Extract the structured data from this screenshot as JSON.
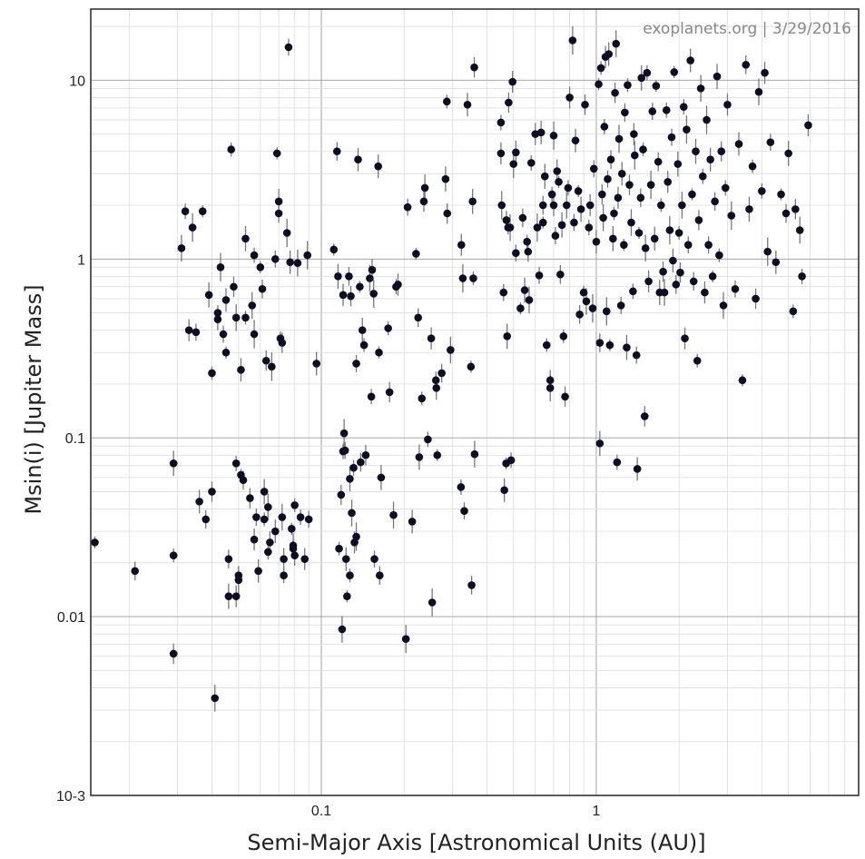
{
  "chart_data": {
    "type": "scatter",
    "title": "",
    "credit": "exoplanets.org | 3/29/2016",
    "xlabel": "Semi-Major Axis [Astronomical Units (AU)]",
    "ylabel": "Msin(i) [Jupiter Mass]",
    "xscale": "log",
    "yscale": "log",
    "xlim": [
      0.0145,
      9.0
    ],
    "ylim": [
      0.001,
      25
    ],
    "x_ticks": [
      {
        "value": 0.1,
        "label": "0.1"
      },
      {
        "value": 1,
        "label": "1"
      }
    ],
    "y_ticks": [
      {
        "value": 10,
        "label": "10"
      },
      {
        "value": 1,
        "label": "1"
      },
      {
        "value": 0.1,
        "label": "0.1"
      },
      {
        "value": 0.01,
        "label": "0.01"
      },
      {
        "value": 0.001,
        "label": "10-3"
      }
    ],
    "grid": true,
    "marker_color": "#0d0d26",
    "error_bar_color": "#777777",
    "points": [
      [
        0.015,
        0.026
      ],
      [
        0.021,
        0.018
      ],
      [
        0.029,
        0.072
      ],
      [
        0.029,
        0.022
      ],
      [
        0.029,
        0.0062
      ],
      [
        0.031,
        1.15
      ],
      [
        0.032,
        1.85
      ],
      [
        0.033,
        0.4
      ],
      [
        0.034,
        1.5
      ],
      [
        0.035,
        0.39
      ],
      [
        0.036,
        0.044
      ],
      [
        0.037,
        1.85
      ],
      [
        0.038,
        0.035
      ],
      [
        0.039,
        0.63
      ],
      [
        0.04,
        0.23
      ],
      [
        0.04,
        0.05
      ],
      [
        0.041,
        0.0035
      ],
      [
        0.042,
        0.5
      ],
      [
        0.042,
        0.46
      ],
      [
        0.043,
        0.9
      ],
      [
        0.044,
        0.38
      ],
      [
        0.045,
        0.59
      ],
      [
        0.045,
        0.3
      ],
      [
        0.046,
        0.021
      ],
      [
        0.046,
        0.013
      ],
      [
        0.047,
        4.1
      ],
      [
        0.048,
        0.7
      ],
      [
        0.049,
        0.47
      ],
      [
        0.049,
        0.072
      ],
      [
        0.049,
        0.013
      ],
      [
        0.05,
        0.016
      ],
      [
        0.05,
        0.017
      ],
      [
        0.051,
        0.24
      ],
      [
        0.051,
        0.062
      ],
      [
        0.052,
        0.058
      ],
      [
        0.053,
        1.3
      ],
      [
        0.053,
        0.47
      ],
      [
        0.055,
        0.046
      ],
      [
        0.056,
        0.55
      ],
      [
        0.057,
        1.05
      ],
      [
        0.057,
        0.027
      ],
      [
        0.057,
        0.38
      ],
      [
        0.058,
        0.036
      ],
      [
        0.059,
        0.018
      ],
      [
        0.06,
        0.9
      ],
      [
        0.061,
        0.68
      ],
      [
        0.062,
        0.05
      ],
      [
        0.062,
        0.035
      ],
      [
        0.063,
        0.27
      ],
      [
        0.064,
        0.041
      ],
      [
        0.064,
        0.023
      ],
      [
        0.065,
        0.026
      ],
      [
        0.066,
        0.25
      ],
      [
        0.068,
        1.0
      ],
      [
        0.068,
        0.03
      ],
      [
        0.069,
        3.9
      ],
      [
        0.07,
        1.8
      ],
      [
        0.07,
        2.1
      ],
      [
        0.071,
        0.36
      ],
      [
        0.072,
        0.34
      ],
      [
        0.072,
        0.036
      ],
      [
        0.073,
        0.017
      ],
      [
        0.073,
        0.021
      ],
      [
        0.075,
        1.4
      ],
      [
        0.076,
        15.3
      ],
      [
        0.077,
        0.96
      ],
      [
        0.078,
        0.031
      ],
      [
        0.079,
        0.024
      ],
      [
        0.079,
        0.025
      ],
      [
        0.08,
        0.042
      ],
      [
        0.08,
        0.022
      ],
      [
        0.082,
        0.95
      ],
      [
        0.084,
        0.036
      ],
      [
        0.087,
        0.021
      ],
      [
        0.089,
        1.05
      ],
      [
        0.09,
        0.035
      ],
      [
        0.096,
        0.26
      ],
      [
        0.111,
        1.13
      ],
      [
        0.114,
        4.0
      ],
      [
        0.115,
        0.8
      ],
      [
        0.116,
        0.024
      ],
      [
        0.118,
        0.048
      ],
      [
        0.119,
        0.0085
      ],
      [
        0.12,
        0.084
      ],
      [
        0.12,
        0.63
      ],
      [
        0.121,
        0.106
      ],
      [
        0.122,
        0.085
      ],
      [
        0.123,
        0.021
      ],
      [
        0.124,
        0.013
      ],
      [
        0.126,
        0.8
      ],
      [
        0.127,
        0.059
      ],
      [
        0.127,
        0.017
      ],
      [
        0.128,
        0.62
      ],
      [
        0.129,
        0.038
      ],
      [
        0.131,
        0.068
      ],
      [
        0.132,
        0.026
      ],
      [
        0.134,
        0.028
      ],
      [
        0.134,
        0.26
      ],
      [
        0.136,
        3.6
      ],
      [
        0.138,
        0.7
      ],
      [
        0.139,
        0.073
      ],
      [
        0.141,
        0.4
      ],
      [
        0.143,
        0.33
      ],
      [
        0.145,
        0.08
      ],
      [
        0.15,
        0.78
      ],
      [
        0.152,
        0.17
      ],
      [
        0.153,
        0.87
      ],
      [
        0.155,
        0.64
      ],
      [
        0.156,
        0.021
      ],
      [
        0.161,
        3.3
      ],
      [
        0.162,
        0.3
      ],
      [
        0.163,
        0.017
      ],
      [
        0.165,
        0.06
      ],
      [
        0.175,
        0.41
      ],
      [
        0.177,
        0.18
      ],
      [
        0.183,
        0.037
      ],
      [
        0.187,
        0.7
      ],
      [
        0.19,
        0.72
      ],
      [
        0.203,
        0.0075
      ],
      [
        0.206,
        1.95
      ],
      [
        0.214,
        0.034
      ],
      [
        0.221,
        1.07
      ],
      [
        0.225,
        0.47
      ],
      [
        0.227,
        0.078
      ],
      [
        0.232,
        0.166
      ],
      [
        0.236,
        2.1
      ],
      [
        0.238,
        2.5
      ],
      [
        0.244,
        0.098
      ],
      [
        0.251,
        0.36
      ],
      [
        0.253,
        0.012
      ],
      [
        0.261,
        0.21
      ],
      [
        0.262,
        0.19
      ],
      [
        0.264,
        0.08
      ],
      [
        0.274,
        0.23
      ],
      [
        0.283,
        2.8
      ],
      [
        0.286,
        7.6
      ],
      [
        0.287,
        1.8
      ],
      [
        0.295,
        0.31
      ],
      [
        0.322,
        0.053
      ],
      [
        0.323,
        1.2
      ],
      [
        0.327,
        0.78
      ],
      [
        0.331,
        0.039
      ],
      [
        0.34,
        7.3
      ],
      [
        0.35,
        0.25
      ],
      [
        0.352,
        0.015
      ],
      [
        0.355,
        2.1
      ],
      [
        0.357,
        0.78
      ],
      [
        0.36,
        11.8
      ],
      [
        0.361,
        0.081
      ],
      [
        0.45,
        5.8
      ],
      [
        0.45,
        3.9
      ],
      [
        0.453,
        2.0
      ],
      [
        0.46,
        0.65
      ],
      [
        0.463,
        0.051
      ],
      [
        0.47,
        0.072
      ],
      [
        0.471,
        1.65
      ],
      [
        0.474,
        0.37
      ],
      [
        0.478,
        1.5
      ],
      [
        0.48,
        7.5
      ],
      [
        0.486,
        1.5
      ],
      [
        0.49,
        0.075
      ],
      [
        0.496,
        9.8
      ],
      [
        0.5,
        3.4
      ],
      [
        0.51,
        1.08
      ],
      [
        0.51,
        3.95
      ],
      [
        0.53,
        0.53
      ],
      [
        0.54,
        1.7
      ],
      [
        0.549,
        0.67
      ],
      [
        0.56,
        1.25
      ],
      [
        0.565,
        1.1
      ],
      [
        0.57,
        0.59
      ],
      [
        0.58,
        3.45
      ],
      [
        0.6,
        5.0
      ],
      [
        0.61,
        1.5
      ],
      [
        0.62,
        0.81
      ],
      [
        0.63,
        5.1
      ],
      [
        0.64,
        1.6
      ],
      [
        0.64,
        2.0
      ],
      [
        0.65,
        2.9
      ],
      [
        0.66,
        0.33
      ],
      [
        0.68,
        0.21
      ],
      [
        0.68,
        0.19
      ],
      [
        0.69,
        2.3
      ],
      [
        0.7,
        2.0
      ],
      [
        0.7,
        4.9
      ],
      [
        0.71,
        1.35
      ],
      [
        0.72,
        3.1
      ],
      [
        0.73,
        2.7
      ],
      [
        0.74,
        0.82
      ],
      [
        0.75,
        1.55
      ],
      [
        0.76,
        0.37
      ],
      [
        0.77,
        0.17
      ],
      [
        0.78,
        2.0
      ],
      [
        0.79,
        2.5
      ],
      [
        0.8,
        8.0
      ],
      [
        0.82,
        16.7
      ],
      [
        0.83,
        1.6
      ],
      [
        0.84,
        4.6
      ],
      [
        0.86,
        2.4
      ],
      [
        0.87,
        0.49
      ],
      [
        0.88,
        1.9
      ],
      [
        0.9,
        0.65
      ],
      [
        0.91,
        7.3
      ],
      [
        0.92,
        0.58
      ],
      [
        0.94,
        1.5
      ],
      [
        0.95,
        2.0
      ],
      [
        0.97,
        0.53
      ],
      [
        0.98,
        3.2
      ],
      [
        1.0,
        1.25
      ],
      [
        1.02,
        9.5
      ],
      [
        1.03,
        0.34
      ],
      [
        1.03,
        0.093
      ],
      [
        1.04,
        11.7
      ],
      [
        1.05,
        2.3
      ],
      [
        1.06,
        1.7
      ],
      [
        1.07,
        5.5
      ],
      [
        1.08,
        13.5
      ],
      [
        1.09,
        0.51
      ],
      [
        1.1,
        2.8
      ],
      [
        1.11,
        14.0
      ],
      [
        1.12,
        0.33
      ],
      [
        1.13,
        3.6
      ],
      [
        1.15,
        1.3
      ],
      [
        1.16,
        1.8
      ],
      [
        1.17,
        8.5
      ],
      [
        1.18,
        16.0
      ],
      [
        1.19,
        0.073
      ],
      [
        1.2,
        2.2
      ],
      [
        1.21,
        4.7
      ],
      [
        1.23,
        0.55
      ],
      [
        1.24,
        3.0
      ],
      [
        1.26,
        1.2
      ],
      [
        1.27,
        6.6
      ],
      [
        1.29,
        0.32
      ],
      [
        1.3,
        9.4
      ],
      [
        1.32,
        2.6
      ],
      [
        1.34,
        1.6
      ],
      [
        1.36,
        0.66
      ],
      [
        1.37,
        5.0
      ],
      [
        1.38,
        3.8
      ],
      [
        1.4,
        0.29
      ],
      [
        1.41,
        0.067
      ],
      [
        1.43,
        1.4
      ],
      [
        1.45,
        2.2
      ],
      [
        1.46,
        10.3
      ],
      [
        1.48,
        4.1
      ],
      [
        1.5,
        0.132
      ],
      [
        1.51,
        1.15
      ],
      [
        1.53,
        11.0
      ],
      [
        1.55,
        0.75
      ],
      [
        1.58,
        2.6
      ],
      [
        1.6,
        6.7
      ],
      [
        1.63,
        1.3
      ],
      [
        1.65,
        9.3
      ],
      [
        1.68,
        3.5
      ],
      [
        1.7,
        0.65
      ],
      [
        1.72,
        2.0
      ],
      [
        1.75,
        0.85
      ],
      [
        1.77,
        0.65
      ],
      [
        1.8,
        6.8
      ],
      [
        1.82,
        2.7
      ],
      [
        1.85,
        1.45
      ],
      [
        1.88,
        4.8
      ],
      [
        1.9,
        0.98
      ],
      [
        1.92,
        11.1
      ],
      [
        1.95,
        0.72
      ],
      [
        1.98,
        3.4
      ],
      [
        2.0,
        1.4
      ],
      [
        2.02,
        0.84
      ],
      [
        2.05,
        2.0
      ],
      [
        2.08,
        7.1
      ],
      [
        2.1,
        0.36
      ],
      [
        2.13,
        5.3
      ],
      [
        2.16,
        1.2
      ],
      [
        2.2,
        12.9
      ],
      [
        2.23,
        2.3
      ],
      [
        2.26,
        0.75
      ],
      [
        2.3,
        4.0
      ],
      [
        2.33,
        0.27
      ],
      [
        2.36,
        1.65
      ],
      [
        2.4,
        9.0
      ],
      [
        2.44,
        2.9
      ],
      [
        2.48,
        0.65
      ],
      [
        2.52,
        6.0
      ],
      [
        2.56,
        1.2
      ],
      [
        2.6,
        3.6
      ],
      [
        2.65,
        0.8
      ],
      [
        2.7,
        2.1
      ],
      [
        2.75,
        10.5
      ],
      [
        2.8,
        1.05
      ],
      [
        2.85,
        4.0
      ],
      [
        2.9,
        0.55
      ],
      [
        2.95,
        2.5
      ],
      [
        3.0,
        7.3
      ],
      [
        3.1,
        1.75
      ],
      [
        3.2,
        0.68
      ],
      [
        3.3,
        4.4
      ],
      [
        3.4,
        0.21
      ],
      [
        3.5,
        12.2
      ],
      [
        3.6,
        1.9
      ],
      [
        3.7,
        3.3
      ],
      [
        3.8,
        0.6
      ],
      [
        3.9,
        8.6
      ],
      [
        4.0,
        2.4
      ],
      [
        4.1,
        11.0
      ],
      [
        4.2,
        1.1
      ],
      [
        4.3,
        4.5
      ],
      [
        4.5,
        0.96
      ],
      [
        4.7,
        2.3
      ],
      [
        4.9,
        1.8
      ],
      [
        5.0,
        3.9
      ],
      [
        5.2,
        0.51
      ],
      [
        5.3,
        1.9
      ],
      [
        5.5,
        1.45
      ],
      [
        5.6,
        0.8
      ],
      [
        5.9,
        5.6
      ]
    ]
  }
}
